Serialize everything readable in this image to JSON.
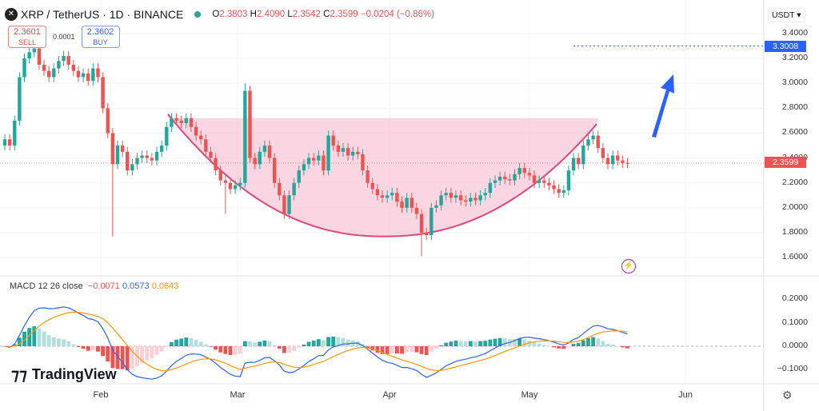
{
  "header": {
    "logo": "XRP",
    "symbol": "XRP / TetherUS · 1D · BINANCE",
    "o_label": "O",
    "o": "2.3803",
    "h_label": "H",
    "h": "2.4090",
    "l_label": "L",
    "l": "2.3542",
    "c_label": "C",
    "c": "2.3599",
    "change": "−0.0204 (−0.86%)"
  },
  "trade": {
    "sell_price": "2.3601",
    "sell_label": "SELL",
    "spread": "0.0001",
    "buy_price": "2.3602",
    "buy_label": "BUY"
  },
  "price_axis": {
    "currency": "USDT ▾",
    "ticks": [
      "3.4000",
      "3.2000",
      "3.0000",
      "2.8000",
      "2.6000",
      "2.4000",
      "2.2000",
      "2.0000",
      "1.8000",
      "1.6000"
    ],
    "target_tag": "3.3008",
    "last_tag": "2.3599"
  },
  "macd": {
    "legend": "MACD 12 26 close",
    "hist": "−0.0071",
    "macd": "0.0573",
    "signal": "0.0643",
    "ticks": [
      "0.2000",
      "0.1000",
      "0.0000",
      "−0.1000"
    ]
  },
  "time_axis": [
    "Feb",
    "Mar",
    "Apr",
    "May",
    "Jun"
  ],
  "brand": "TradingView",
  "colors": {
    "up": "#26a69a",
    "down": "#ef5350",
    "macd": "#2962ff",
    "signal": "#ff9800",
    "cup_fill": "#f8c8d8",
    "cup_line": "#e0457b",
    "arrow": "#2962ff"
  },
  "chart_data": {
    "type": "candlestick",
    "ylim": [
      1.5,
      3.5
    ],
    "target_price": 3.3008,
    "annotations": [
      "cup pattern",
      "upward arrow toward target"
    ],
    "first_day": "Jan 12",
    "close": [
      2.55,
      2.5,
      2.7,
      3.05,
      3.2,
      3.25,
      3.28,
      3.15,
      3.1,
      3.05,
      3.12,
      3.18,
      3.22,
      3.15,
      3.1,
      3.05,
      3.08,
      3.02,
      3.12,
      3.05,
      2.8,
      2.6,
      2.35,
      2.5,
      2.45,
      2.3,
      2.35,
      2.4,
      2.42,
      2.4,
      2.38,
      2.45,
      2.5,
      2.65,
      2.72,
      2.7,
      2.68,
      2.72,
      2.65,
      2.58,
      2.55,
      2.45,
      2.4,
      2.3,
      2.22,
      2.2,
      2.15,
      2.18,
      2.2,
      2.94,
      2.4,
      2.35,
      2.45,
      2.5,
      2.4,
      2.2,
      2.1,
      1.95,
      2.1,
      2.2,
      2.3,
      2.35,
      2.4,
      2.38,
      2.42,
      2.3,
      2.58,
      2.5,
      2.45,
      2.48,
      2.42,
      2.45,
      2.43,
      2.3,
      2.2,
      2.15,
      2.1,
      2.08,
      2.1,
      2.12,
      2.05,
      2.0,
      2.08,
      2.0,
      1.95,
      1.8,
      1.78,
      2.0,
      2.02,
      2.1,
      2.12,
      2.08,
      2.1,
      2.06,
      2.05,
      2.08,
      2.06,
      2.1,
      2.12,
      2.2,
      2.22,
      2.25,
      2.23,
      2.22,
      2.27,
      2.32,
      2.28,
      2.26,
      2.2,
      2.22,
      2.2,
      2.18,
      2.15,
      2.12,
      2.14,
      2.3,
      2.4,
      2.35,
      2.5,
      2.55,
      2.58,
      2.48,
      2.4,
      2.35,
      2.42,
      2.38,
      2.36,
      2.3599
    ],
    "notable_wicks": [
      {
        "day": 22,
        "low": 1.77
      },
      {
        "day": 45,
        "low": 1.95
      },
      {
        "day": 49,
        "high": 3.0
      },
      {
        "day": 85,
        "low": 1.61
      }
    ]
  }
}
